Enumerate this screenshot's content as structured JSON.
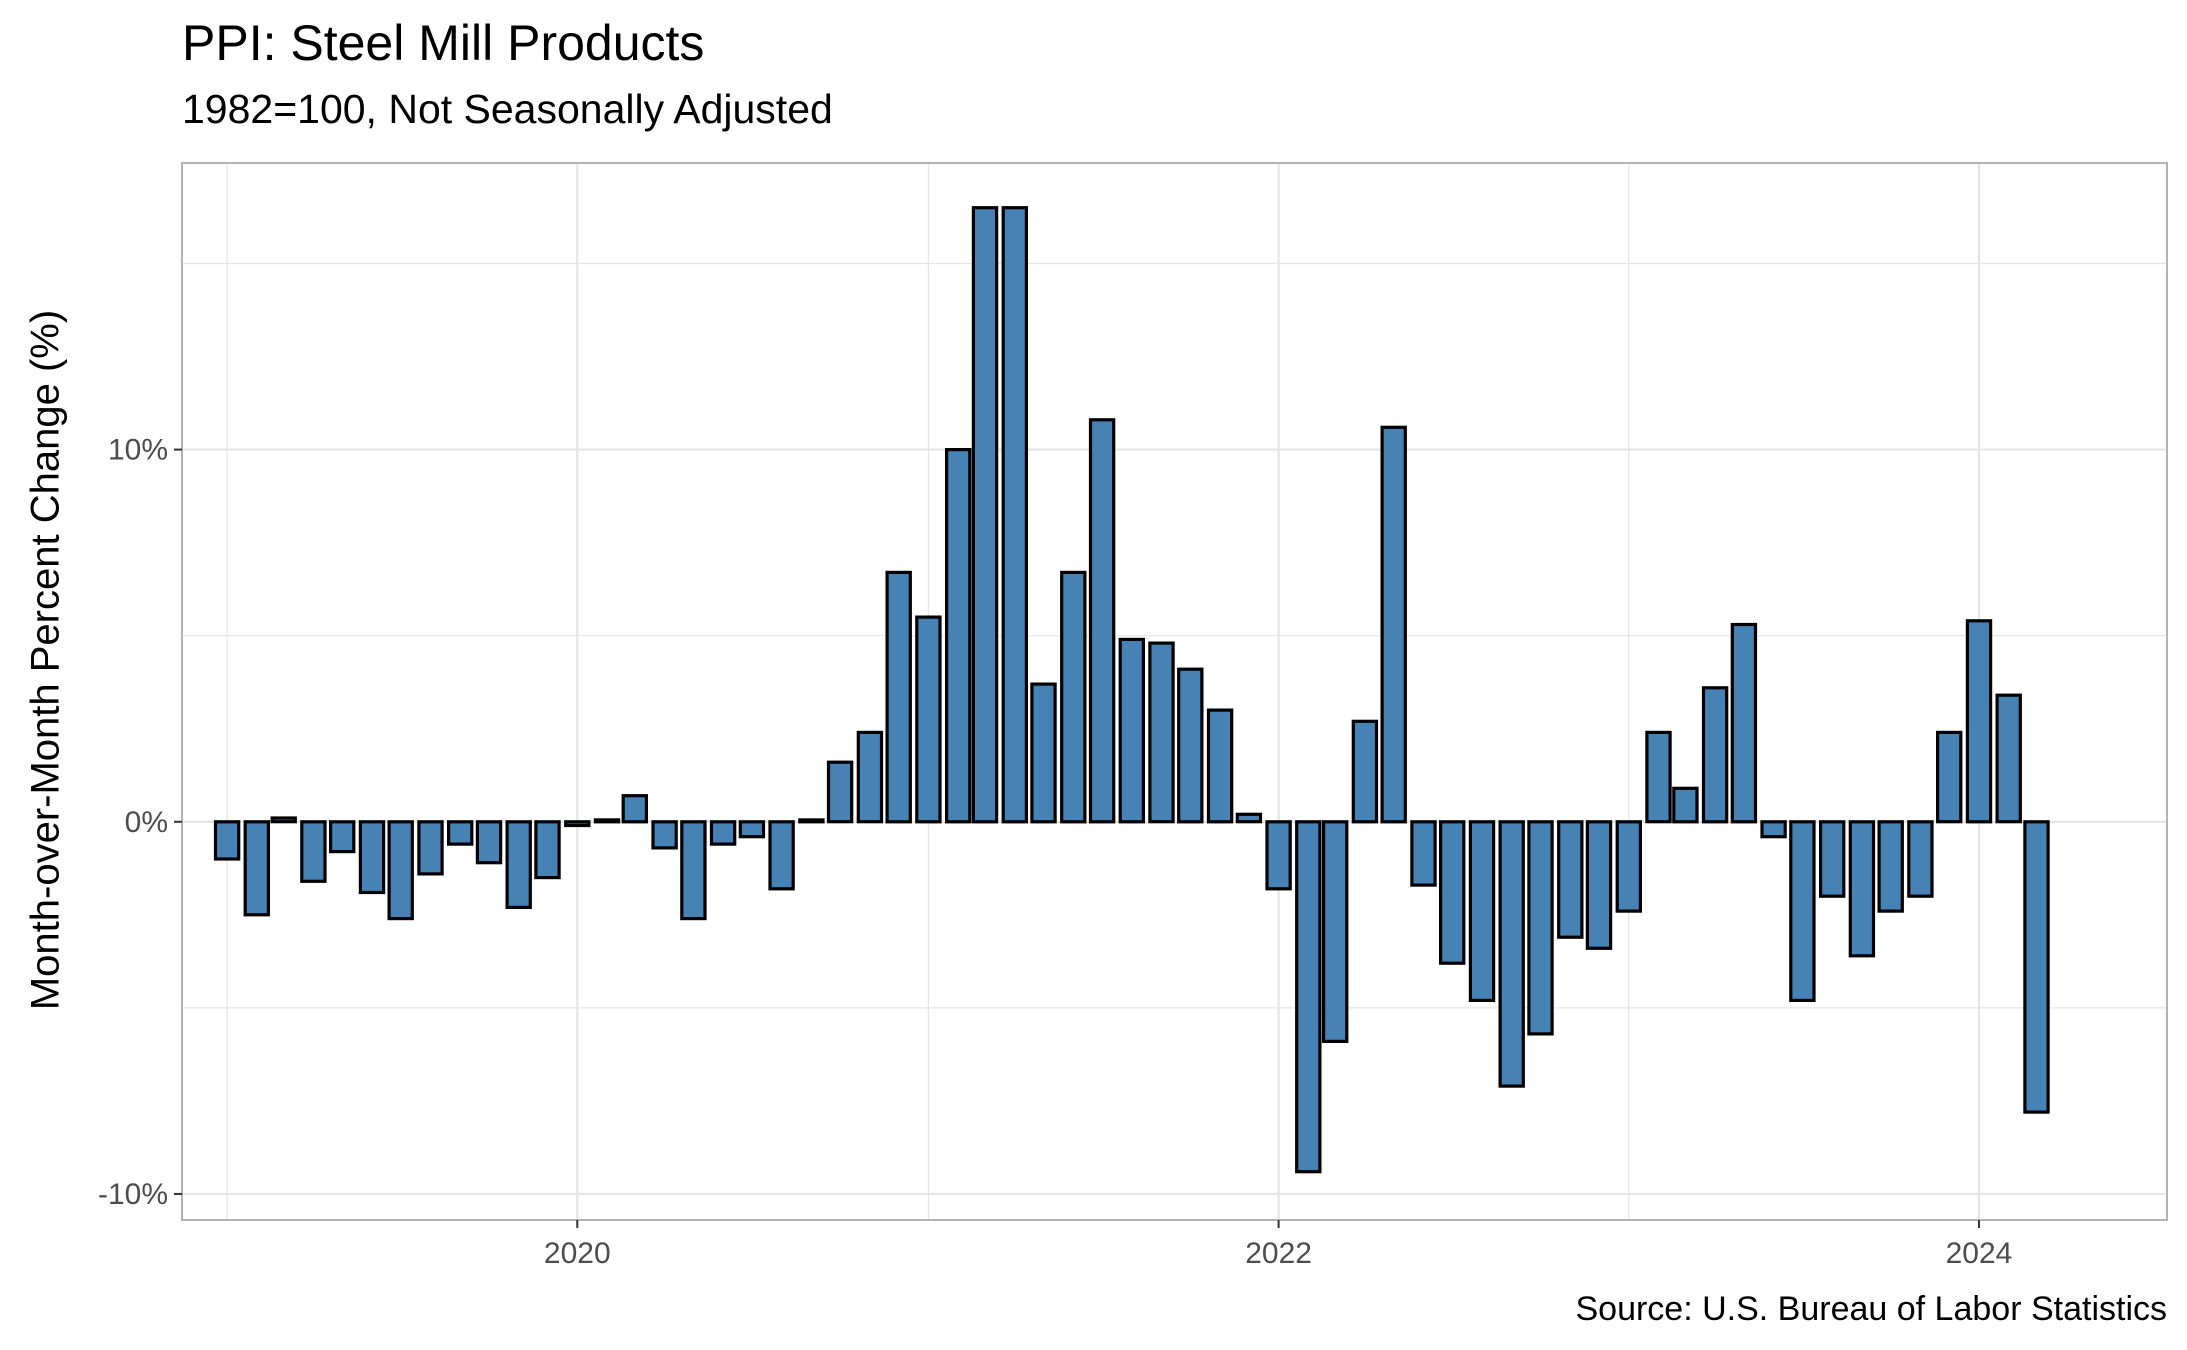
{
  "chart_data": {
    "type": "bar",
    "title": "PPI: Steel Mill Products",
    "subtitle": "1982=100, Not Seasonally Adjusted",
    "ylabel": "Month-over-Month Percent Change (%)",
    "xlabel": "",
    "caption": "Source: U.S. Bureau of Labor Statistics",
    "ylim": [
      -10.7,
      17.7
    ],
    "xlim": [
      "2018-11-15",
      "2024-07-15"
    ],
    "y_ticks": [
      {
        "value": -10,
        "label": "-10%"
      },
      {
        "value": 0,
        "label": "0%"
      },
      {
        "value": 10,
        "label": "10%"
      }
    ],
    "y_minor_ticks": [
      -5,
      5,
      15
    ],
    "x_ticks": [
      {
        "value": "2020-01-01",
        "label": "2020"
      },
      {
        "value": "2022-01-01",
        "label": "2022"
      },
      {
        "value": "2024-01-01",
        "label": "2024"
      }
    ],
    "x_minor_ticks": [
      "2019-01-01",
      "2021-01-01",
      "2023-01-01"
    ],
    "grid": true,
    "colors": {
      "bar_fill": "#4682b4",
      "bar_border": "#000000",
      "grid": "#e5e5e5",
      "panel_border": "#b3b3b3"
    },
    "x": [
      "2019-01",
      "2019-02",
      "2019-03",
      "2019-04",
      "2019-05",
      "2019-06",
      "2019-07",
      "2019-08",
      "2019-09",
      "2019-10",
      "2019-11",
      "2019-12",
      "2020-01",
      "2020-02",
      "2020-03",
      "2020-04",
      "2020-05",
      "2020-06",
      "2020-07",
      "2020-08",
      "2020-09",
      "2020-10",
      "2020-11",
      "2020-12",
      "2021-01",
      "2021-02",
      "2021-03",
      "2021-04",
      "2021-05",
      "2021-06",
      "2021-07",
      "2021-08",
      "2021-09",
      "2021-10",
      "2021-11",
      "2021-12",
      "2022-01",
      "2022-02",
      "2022-03",
      "2022-04",
      "2022-05",
      "2022-06",
      "2022-07",
      "2022-08",
      "2022-09",
      "2022-10",
      "2022-11",
      "2022-12",
      "2023-01",
      "2023-02",
      "2023-03",
      "2023-04",
      "2023-05",
      "2023-06",
      "2023-07",
      "2023-08",
      "2023-09",
      "2023-10",
      "2023-11",
      "2023-12",
      "2024-01",
      "2024-02",
      "2024-03"
    ],
    "values": [
      -1.0,
      -2.5,
      0.1,
      -1.6,
      -0.8,
      -1.9,
      -2.6,
      -1.4,
      -0.6,
      -1.1,
      -2.3,
      -1.5,
      -0.1,
      0.05,
      0.7,
      -0.7,
      -2.6,
      -0.6,
      -0.4,
      -1.8,
      0.05,
      1.6,
      2.4,
      6.7,
      5.5,
      10.0,
      16.5,
      16.5,
      3.7,
      6.7,
      10.8,
      4.9,
      4.8,
      4.1,
      3.0,
      0.2,
      -1.8,
      -9.4,
      -5.9,
      2.7,
      10.6,
      -1.7,
      -3.8,
      -4.8,
      -7.1,
      -5.7,
      -3.1,
      -3.4,
      -2.4,
      2.4,
      0.9,
      3.6,
      5.3,
      -0.4,
      -4.8,
      -2.0,
      -3.6,
      -2.4,
      -2.0,
      2.4,
      5.4,
      3.4,
      -7.8
    ]
  }
}
